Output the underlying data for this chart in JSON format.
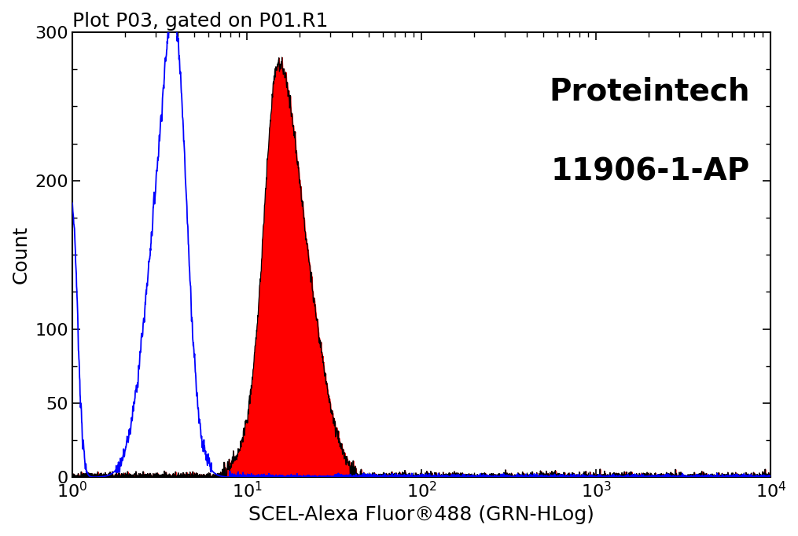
{
  "title": "Plot P03, gated on P01.R1",
  "xlabel": "SCEL-Alexa Fluor®488 (GRN-HLog)",
  "ylabel": "Count",
  "annotation_line1": "Proteintech",
  "annotation_line2": "11906-1-AP",
  "xlim_log": [
    0,
    4
  ],
  "ylim": [
    0,
    300
  ],
  "yticks": [
    0,
    50,
    100,
    200,
    300
  ],
  "background_color": "#ffffff",
  "blue_color": "#0000ff",
  "red_color": "#ff0000",
  "black_color": "#000000",
  "title_fontsize": 18,
  "label_fontsize": 18,
  "tick_fontsize": 16,
  "annotation_fontsize": 28
}
